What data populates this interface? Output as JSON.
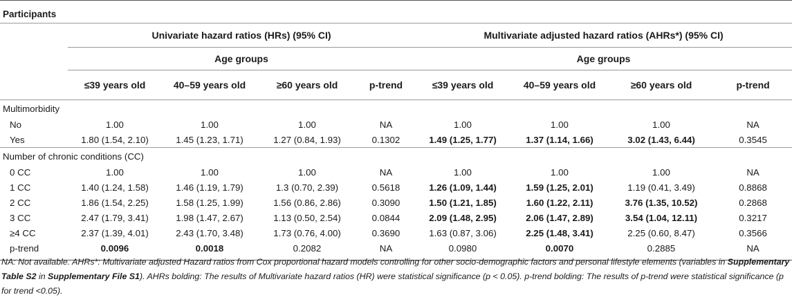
{
  "section_title": "Participants",
  "group_headers": {
    "univariate": "Univariate hazard ratios (HRs) (95% CI)",
    "multivariate": "Multivariate adjusted hazard ratios (AHRs*) (95% CI)"
  },
  "age_groups_label": "Age groups",
  "columns": [
    "≤39 years old",
    "40–59 years old",
    "≥60 years old",
    "p-trend",
    "≤39 years old",
    "40–59 years old",
    "≥60 years old",
    "p-trend"
  ],
  "sections": [
    {
      "title": "Multimorbidity",
      "rows": [
        {
          "label": "No",
          "values": [
            "1.00",
            "1.00",
            "1.00",
            "NA",
            "1.00",
            "1.00",
            "1.00",
            "NA"
          ],
          "bold": [
            false,
            false,
            false,
            false,
            false,
            false,
            false,
            false
          ]
        },
        {
          "label": "Yes",
          "values": [
            "1.80 (1.54, 2.10)",
            "1.45 (1.23, 1.71)",
            "1.27 (0.84, 1.93)",
            "0.1302",
            "1.49 (1.25, 1.77)",
            "1.37 (1.14, 1.66)",
            "3.02 (1.43, 6.44)",
            "0.3545"
          ],
          "bold": [
            false,
            false,
            false,
            false,
            true,
            true,
            true,
            false
          ]
        }
      ]
    },
    {
      "title": "Number of chronic conditions (CC)",
      "rows": [
        {
          "label": "0 CC",
          "values": [
            "1.00",
            "1.00",
            "1.00",
            "NA",
            "1.00",
            "1.00",
            "1.00",
            "NA"
          ],
          "bold": [
            false,
            false,
            false,
            false,
            false,
            false,
            false,
            false
          ]
        },
        {
          "label": "1 CC",
          "values": [
            "1.40 (1.24, 1.58)",
            "1.46 (1.19, 1.79)",
            "1.3 (0.70, 2.39)",
            "0.5618",
            "1.26 (1.09, 1.44)",
            "1.59 (1.25, 2.01)",
            "1.19 (0.41, 3.49)",
            "0.8868"
          ],
          "bold": [
            false,
            false,
            false,
            false,
            true,
            true,
            false,
            false
          ]
        },
        {
          "label": "2 CC",
          "values": [
            "1.86 (1.54, 2.25)",
            "1.58 (1.25, 1.99)",
            "1.56 (0.86, 2.86)",
            "0.3090",
            "1.50 (1.21, 1.85)",
            "1.60 (1.22, 2.11)",
            "3.76 (1.35, 10.52)",
            "0.2868"
          ],
          "bold": [
            false,
            false,
            false,
            false,
            true,
            true,
            true,
            false
          ]
        },
        {
          "label": "3 CC",
          "values": [
            "2.47 (1.79, 3.41)",
            "1.98 (1.47, 2.67)",
            "1.13 (0.50, 2.54)",
            "0.0844",
            "2.09 (1.48, 2.95)",
            "2.06 (1.47, 2.89)",
            "3.54 (1.04, 12.11)",
            "0.3217"
          ],
          "bold": [
            false,
            false,
            false,
            false,
            true,
            true,
            true,
            false
          ]
        },
        {
          "label": "≥4 CC",
          "values": [
            "2.37 (1.39, 4.01)",
            "2.43 (1.70, 3.48)",
            "1.73 (0.76, 4.00)",
            "0.3690",
            "1.63 (0.87, 3.06)",
            "2.25 (1.48, 3.41)",
            "2.25 (0.60, 8.47)",
            "0.3566"
          ],
          "bold": [
            false,
            false,
            false,
            false,
            false,
            true,
            false,
            false
          ]
        },
        {
          "label": "p-trend",
          "values": [
            "0.0096",
            "0.0018",
            "0.2082",
            "NA",
            "0.0980",
            "0.0070",
            "0.2885",
            "NA"
          ],
          "bold": [
            true,
            true,
            false,
            false,
            false,
            true,
            false,
            false
          ]
        }
      ]
    }
  ],
  "footnote": {
    "part1": "NA: Not available. AHRs*: Multivariate adjusted Hazard ratios from Cox proportional hazard models controlling for other socio-demographic factors and personal lifestyle elements (variables in ",
    "bold1": "Supplementary Table S2",
    "part2": " in ",
    "bold2": "Supplementary File S1",
    "part3": "). AHRs bolding: The results of Multivariate hazard ratios (HR) were statistical significance (p < 0.05). p-trend bolding: The results of p-trend were statistical significance (p for trend <0.05)."
  }
}
